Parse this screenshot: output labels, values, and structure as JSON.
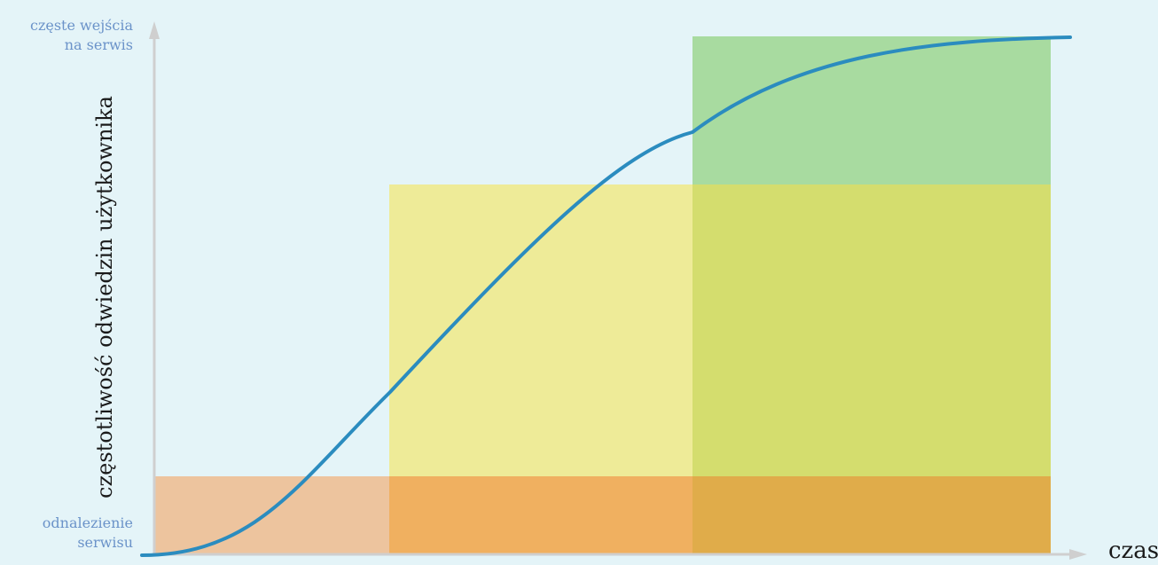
{
  "diagram": {
    "y_axis": {
      "title": "częstotliwość odwiedzin użytkownika",
      "top_label": [
        "częste wejścia",
        "na serwis"
      ],
      "bottom_label": [
        "odnalezienie",
        "serwisu"
      ]
    },
    "x_axis": {
      "title": "czas"
    },
    "colors": {
      "background": "#e4f4f8",
      "axis": "#cfcfcf",
      "curve": "#2b8cbf",
      "side_labels": "#6b93c9",
      "stage_orange": "#f0b060",
      "stage_yellow": "#eeeb98",
      "stage_green": "#a8dba0",
      "overlap_yellow_green": "#d4dd6e",
      "overlap_orange_left": "#edc49e",
      "overlap_orange_right": "#e0ac4a"
    }
  }
}
